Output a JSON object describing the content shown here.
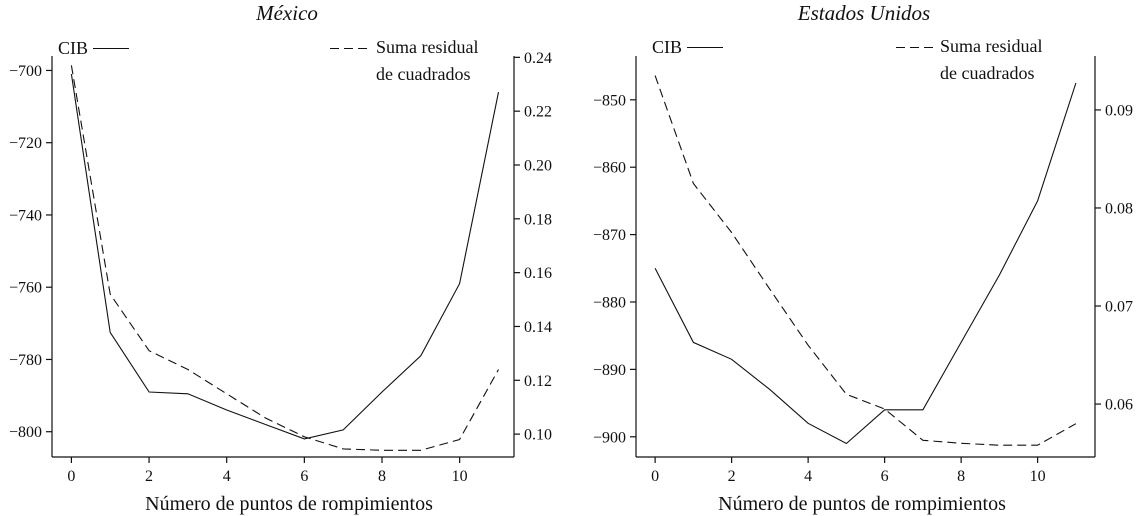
{
  "chart_data": [
    {
      "type": "line",
      "title": "México",
      "xlabel": "Número de puntos de rompimientos",
      "x": [
        0,
        1,
        2,
        3,
        4,
        5,
        6,
        7,
        8,
        9,
        10,
        11
      ],
      "xticks": [
        0,
        2,
        4,
        6,
        8,
        10
      ],
      "xlim": [
        -0.5,
        11.4
      ],
      "left_axis": {
        "ticks": [
          -700,
          -720,
          -740,
          -760,
          -780,
          -800
        ],
        "ylim": [
          -807,
          -696
        ]
      },
      "right_axis": {
        "ticks": [
          "0.24",
          "0.22",
          "0.20",
          "0.18",
          "0.16",
          "0.14",
          "0.12",
          "0.10"
        ],
        "ylim": [
          0.0915,
          0.2405
        ]
      },
      "series": [
        {
          "name": "CIB",
          "axis": "left",
          "style": "solid",
          "values": [
            -701,
            -772.5,
            -789,
            -789.5,
            -794,
            -798,
            -802,
            -799.5,
            -789,
            -779,
            -759,
            -706
          ]
        },
        {
          "name": "Suma residual de cuadrados",
          "axis": "right",
          "style": "dashed",
          "values": [
            0.237,
            0.152,
            0.131,
            0.124,
            0.115,
            0.106,
            0.099,
            0.0945,
            0.094,
            0.094,
            0.098,
            0.124
          ]
        }
      ],
      "legend": {
        "left": "CIB",
        "right": [
          "Suma residual",
          "de cuadrados"
        ]
      }
    },
    {
      "type": "line",
      "title": "Estados Unidos",
      "xlabel": "Número de puntos de rompimientos",
      "x": [
        0,
        1,
        2,
        3,
        4,
        5,
        6,
        7,
        8,
        9,
        10,
        11
      ],
      "xticks": [
        0,
        2,
        4,
        6,
        8,
        10
      ],
      "xlim": [
        -0.5,
        11.5
      ],
      "left_axis": {
        "ticks": [
          -850,
          -860,
          -870,
          -880,
          -890,
          -900
        ],
        "ylim": [
          -903,
          -843.5
        ]
      },
      "right_axis": {
        "ticks": [
          "0.09",
          "0.08",
          "0.07",
          "0.06"
        ],
        "ylim": [
          0.0546,
          0.0955
        ]
      },
      "series": [
        {
          "name": "CIB",
          "axis": "left",
          "style": "solid",
          "values": [
            -875,
            -886,
            -888.5,
            -893,
            -898,
            -901,
            -896,
            -896,
            -886,
            -876,
            -865,
            -847.5
          ]
        },
        {
          "name": "Suma residual de cuadrados",
          "axis": "right",
          "style": "dashed",
          "values": [
            0.0935,
            0.0825,
            0.0775,
            0.0717,
            0.066,
            0.061,
            0.0595,
            0.0563,
            0.056,
            0.0558,
            0.0558,
            0.058
          ]
        }
      ],
      "legend": {
        "left": "CIB",
        "right": [
          "Suma residual",
          "de cuadrados"
        ]
      }
    }
  ]
}
